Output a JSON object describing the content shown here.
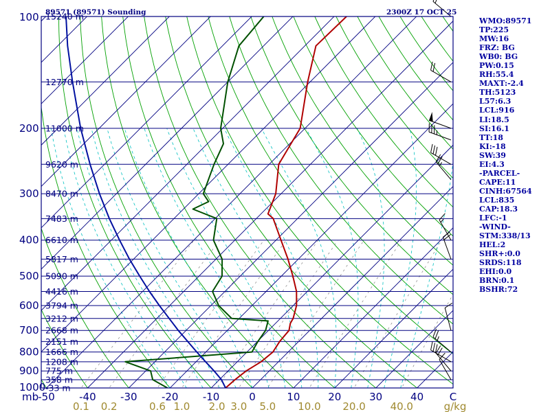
{
  "chart_data": {
    "type": "line",
    "title": "89571 (89571) Sounding",
    "time_label": "2300Z 17 OCT 25",
    "pressure_axis": {
      "ticks": [
        "100",
        "200",
        "300",
        "400",
        "500",
        "600",
        "700",
        "800",
        "900",
        "1000"
      ],
      "ticks_values": [
        100,
        200,
        300,
        400,
        500,
        600,
        700,
        800,
        900,
        1000
      ],
      "unit": "mb",
      "range": [
        1000,
        100
      ]
    },
    "temperature_axis": {
      "ticks": [
        "-50",
        "-40",
        "-30",
        "-20",
        "-10",
        "0",
        "10",
        "20",
        "30",
        "40"
      ],
      "ticks_values": [
        -50,
        -40,
        -30,
        -20,
        -10,
        0,
        10,
        20,
        30,
        40
      ],
      "unit": "C",
      "range": [
        -50,
        50
      ]
    },
    "mixing_ratio_labels": [
      "0.1",
      "0.2",
      "0.6",
      "1.0",
      "2.0",
      "3.0",
      "5.0",
      "10.0",
      "20.0",
      "40.0"
    ],
    "mixing_ratio_values": [
      0.1,
      0.2,
      0.6,
      1.0,
      2.0,
      3.0,
      5.0,
      10.0,
      20.0,
      40.0
    ],
    "mixing_ratio_unit": "g/kg",
    "height_levels": [
      {
        "label": "15240 m",
        "p": 100
      },
      {
        "label": "12770 m",
        "p": 150
      },
      {
        "label": "11000 m",
        "p": 200
      },
      {
        "label": "9620 m",
        "p": 250
      },
      {
        "label": "8470 m",
        "p": 300
      },
      {
        "label": "7483 m",
        "p": 350
      },
      {
        "label": "6610 m",
        "p": 400
      },
      {
        "label": "5817 m",
        "p": 450
      },
      {
        "label": "5090 m",
        "p": 500
      },
      {
        "label": "4416 m",
        "p": 550
      },
      {
        "label": "3794 m",
        "p": 600
      },
      {
        "label": "3212 m",
        "p": 650
      },
      {
        "label": "2668 m",
        "p": 700
      },
      {
        "label": "2151 m",
        "p": 750
      },
      {
        "label": "1666 m",
        "p": 800
      },
      {
        "label": "1208 m",
        "p": 850
      },
      {
        "label": "775 m",
        "p": 900
      },
      {
        "label": "358 m",
        "p": 950
      },
      {
        "label": "-33 m",
        "p": 1000
      }
    ],
    "series": [
      {
        "name": "Temperature",
        "color": "#b00000",
        "points": [
          {
            "p": 1000,
            "t": -6.5
          },
          {
            "p": 950,
            "t": -6.2
          },
          {
            "p": 900,
            "t": -5.6
          },
          {
            "p": 850,
            "t": -4.2
          },
          {
            "p": 800,
            "t": -3.7
          },
          {
            "p": 750,
            "t": -4.6
          },
          {
            "p": 700,
            "t": -5.0
          },
          {
            "p": 670,
            "t": -6.4
          },
          {
            "p": 650,
            "t": -6.9
          },
          {
            "p": 600,
            "t": -9.2
          },
          {
            "p": 550,
            "t": -12.6
          },
          {
            "p": 500,
            "t": -17.2
          },
          {
            "p": 450,
            "t": -22.5
          },
          {
            "p": 400,
            "t": -28.8
          },
          {
            "p": 350,
            "t": -35.9
          },
          {
            "p": 340,
            "t": -38.3
          },
          {
            "p": 300,
            "t": -41.3
          },
          {
            "p": 250,
            "t": -47.7
          },
          {
            "p": 200,
            "t": -51.2
          },
          {
            "p": 150,
            "t": -60.6
          },
          {
            "p": 120,
            "t": -67.3
          },
          {
            "p": 100,
            "t": -67.0
          }
        ]
      },
      {
        "name": "Dewpoint",
        "color": "#005000",
        "points": [
          {
            "p": 1000,
            "t": -20.6
          },
          {
            "p": 950,
            "t": -26.2
          },
          {
            "p": 900,
            "t": -28.8
          },
          {
            "p": 850,
            "t": -37.2
          },
          {
            "p": 800,
            "t": -8.8
          },
          {
            "p": 750,
            "t": -9.9
          },
          {
            "p": 700,
            "t": -10.7
          },
          {
            "p": 660,
            "t": -12.4
          },
          {
            "p": 650,
            "t": -21.8
          },
          {
            "p": 600,
            "t": -28.1
          },
          {
            "p": 550,
            "t": -33.0
          },
          {
            "p": 500,
            "t": -34.4
          },
          {
            "p": 450,
            "t": -38.5
          },
          {
            "p": 400,
            "t": -45.2
          },
          {
            "p": 350,
            "t": -49.6
          },
          {
            "p": 330,
            "t": -57.7
          },
          {
            "p": 315,
            "t": -55.7
          },
          {
            "p": 300,
            "t": -58.9
          },
          {
            "p": 250,
            "t": -63.4
          },
          {
            "p": 220,
            "t": -66.1
          },
          {
            "p": 200,
            "t": -70.5
          },
          {
            "p": 150,
            "t": -80.0
          },
          {
            "p": 120,
            "t": -86.0
          },
          {
            "p": 100,
            "t": -87.1
          }
        ]
      },
      {
        "name": "Parcel",
        "color": "#0010a0",
        "points": [
          {
            "p": 1000,
            "t": -6.5
          },
          {
            "p": 950,
            "t": -9.5
          },
          {
            "p": 900,
            "t": -13.4
          },
          {
            "p": 850,
            "t": -17.7
          },
          {
            "p": 800,
            "t": -22.2
          },
          {
            "p": 750,
            "t": -26.9
          },
          {
            "p": 700,
            "t": -31.9
          },
          {
            "p": 650,
            "t": -37.0
          },
          {
            "p": 600,
            "t": -42.5
          },
          {
            "p": 550,
            "t": -48.3
          },
          {
            "p": 500,
            "t": -54.4
          },
          {
            "p": 450,
            "t": -61.0
          },
          {
            "p": 400,
            "t": -68.0
          },
          {
            "p": 350,
            "t": -75.7
          },
          {
            "p": 300,
            "t": -84.1
          },
          {
            "p": 250,
            "t": -93.5
          },
          {
            "p": 200,
            "t": -104.5
          },
          {
            "p": 150,
            "t": -117.7
          },
          {
            "p": 120,
            "t": -127.6
          },
          {
            "p": 100,
            "t": -135.1
          }
        ]
      }
    ],
    "wind_barbs": [
      {
        "p": 100,
        "dir": 310,
        "spd": 15
      },
      {
        "p": 150,
        "dir": 300,
        "spd": 20
      },
      {
        "p": 200,
        "dir": 290,
        "spd": 50
      },
      {
        "p": 215,
        "dir": 290,
        "spd": 35
      },
      {
        "p": 250,
        "dir": 300,
        "spd": 30
      },
      {
        "p": 275,
        "dir": 320,
        "spd": 25
      },
      {
        "p": 400,
        "dir": 330,
        "spd": 15
      },
      {
        "p": 450,
        "dir": 340,
        "spd": 20
      },
      {
        "p": 700,
        "dir": 345,
        "spd": 10
      },
      {
        "p": 800,
        "dir": 310,
        "spd": 25
      },
      {
        "p": 850,
        "dir": 300,
        "spd": 30
      },
      {
        "p": 900,
        "dir": 320,
        "spd": 20
      },
      {
        "p": 950,
        "dir": 330,
        "spd": 10
      }
    ]
  },
  "indices": [
    "WMO:89571",
    "TP:225",
    "MW:16",
    "FRZ: BG",
    "WB0: BG",
    "PW:0.15",
    "RH:55.4",
    "MAXT:-2.4",
    "TH:5123",
    "L57:6.3",
    "LCL:916",
    "LI:18.5",
    "SI:16.1",
    "TT:18",
    "KI:-18",
    "SW:39",
    "EI:4.3",
    "-PARCEL-",
    "CAPE:11",
    "CINH:67564",
    "LCL:835",
    "CAP:18.3",
    "LFC:-1",
    "-WIND-",
    "STM:338/13",
    "HEL:2",
    "SHR+:0.0",
    "SRDS:118",
    "EHI:0.0",
    "BRN:0.1",
    "BSHR:72"
  ],
  "colors": {
    "isobar": "#000080",
    "isotherm": "#000080",
    "dry_adiabat": "#00a000",
    "moist_adiabat": "#00c0c0",
    "mixing_ratio": "#808080",
    "frame": "#000080",
    "barb": "#000000"
  }
}
